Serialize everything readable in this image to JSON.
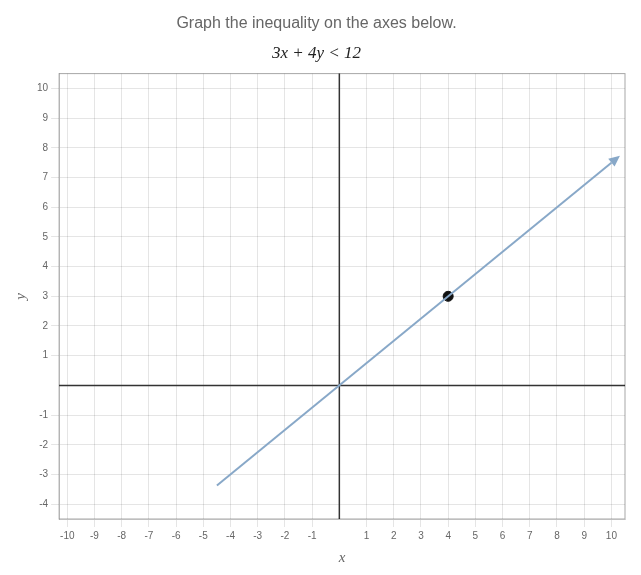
{
  "chart_data": {
    "type": "scatter",
    "title": "Graph the inequality on the axes below.",
    "subtitle": "3x + 4y < 12",
    "xlabel": "x",
    "ylabel": "y",
    "series": [
      {
        "type": "line",
        "color": "#88a8c8",
        "line_style": "solid",
        "x": [
          -4.5,
          10.0
        ],
        "values": [
          -3.375,
          7.5
        ]
      },
      {
        "type": "scatter",
        "color": "#111111",
        "marker": "circle",
        "x": [
          4
        ],
        "values": [
          3
        ]
      }
    ],
    "xlim": [
      -10.3,
      10.5
    ],
    "ylim": [
      -4.5,
      10.5
    ],
    "xticks": [
      -10,
      -9,
      -8,
      -7,
      -6,
      -5,
      -4,
      -3,
      -2,
      -1,
      1,
      2,
      3,
      4,
      5,
      6,
      7,
      8,
      9,
      10
    ],
    "yticks": [
      -4,
      -3,
      -2,
      -1,
      1,
      2,
      3,
      4,
      5,
      6,
      7,
      8,
      9,
      10
    ],
    "grid": true
  }
}
